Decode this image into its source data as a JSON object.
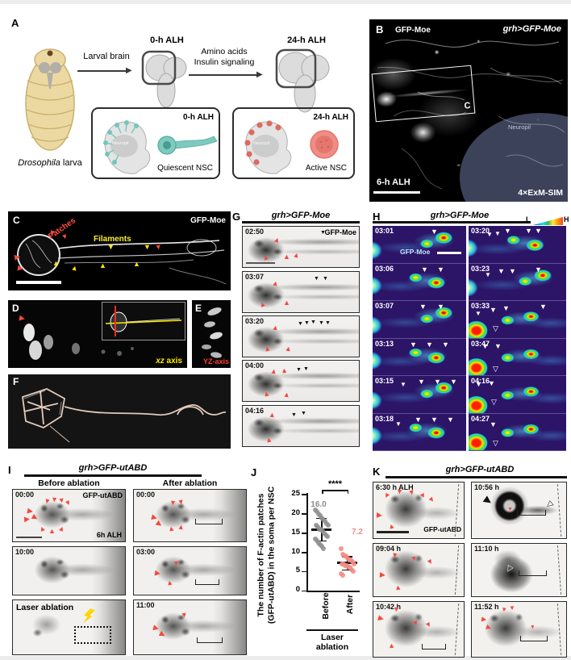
{
  "icons": {
    "tri_up": "▲",
    "tri_down": "▼",
    "tri_right": "▶",
    "tri_down_open": "▽",
    "tri_right_open": "▷"
  },
  "marker_colors": {
    "red": "#f4493d",
    "yellow": "#ffe600",
    "white": "#ffffff",
    "black": "#111111"
  },
  "panelA": {
    "label": "A",
    "larva_species": "Drosophila",
    "larva_word": " larva",
    "larval_brain": "Larval brain",
    "alh0": "0-h ALH",
    "amino": "Amino acids",
    "insulin": "Insulin signaling",
    "alh24": "24-h ALH",
    "q_time": "0-h ALH",
    "q_neuropil": "Neuropil",
    "q_caption": "Quiescent NSC",
    "a_time": "24-h ALH",
    "a_neuropil": "Neuropil",
    "a_caption": "Active NSC"
  },
  "panelB": {
    "label": "B",
    "marker": "GFP-Moe",
    "genotype": "grh>GFP-Moe",
    "inset": "C",
    "neuropil": "Neuropil",
    "time": "6-h ALH",
    "method": "4×ExM-SIM"
  },
  "panelC": {
    "label": "C",
    "patches": "Patches",
    "filaments": "Filaments",
    "marker": "GFP-Moe"
  },
  "panelD": {
    "label": "D",
    "axis_italic": "xz",
    "axis_rest": " axis"
  },
  "panelE": {
    "label": "E",
    "axis": "YZ-axis"
  },
  "panelF": {
    "label": "F"
  },
  "panelG": {
    "label": "G",
    "genotype": "grh>GFP-Moe",
    "marker": "GFP-Moe",
    "times": [
      "02:50",
      "03:07",
      "03:20",
      "04:00",
      "04:16"
    ]
  },
  "panelH": {
    "label": "H",
    "genotype": "grh>GFP-Moe",
    "marker": "GFP-Moe",
    "low": "L",
    "high": "H",
    "left_times": [
      "03:01",
      "03:06",
      "03:07",
      "03:13",
      "03:15",
      "03:18"
    ],
    "right_times": [
      "03:20",
      "03:23",
      "03:33",
      "03:47",
      "04:16",
      "04:27"
    ]
  },
  "panelI": {
    "label": "I",
    "genotype": "grh>GFP-utABD",
    "before": "Before ablation",
    "after": "After ablation",
    "marker": "GFP-utABD",
    "age": "6h ALH",
    "laser": "Laser ablation",
    "left_times": [
      "00:00",
      "10:00"
    ],
    "right_times": [
      "00:00",
      "03:00",
      "11:00"
    ]
  },
  "panelJ": {
    "label": "J",
    "sig": "****",
    "before_mean": "16.0",
    "after_mean": "7.2",
    "ylabel1": "The number of F-actin patches",
    "ylabel2": "(GFP-utABD) in the soma per NSC",
    "group1": "Before",
    "group2": "After",
    "laser1": "Laser",
    "laser2": "ablation",
    "yticks": [
      "25",
      "20",
      "15",
      "10",
      "5",
      "0"
    ]
  },
  "panelK": {
    "label": "K",
    "genotype": "grh>GFP-utABD",
    "marker": "GFP-utABD",
    "left_times": [
      "6:30 h ALH",
      "09:04 h",
      "10:42 h"
    ],
    "right_times": [
      "10:56 h",
      "11:10 h",
      "11:52 h"
    ]
  },
  "chart_data": {
    "type": "scatter",
    "title": "",
    "ylabel": "The number of F-actin patches (GFP-utABD) in the soma per NSC",
    "ylim": [
      0,
      25
    ],
    "yticks": [
      0,
      5,
      10,
      15,
      20,
      25
    ],
    "x_group_label": "Laser ablation",
    "significance": "****",
    "legend_position": "none",
    "series": [
      {
        "name": "Before",
        "mean": 16.0,
        "sd": 3.0,
        "color": "#8f8f8f",
        "values": [
          21,
          20.5,
          20,
          19.5,
          19,
          18.5,
          18,
          17.5,
          17,
          17,
          16.5,
          16,
          16,
          15.5,
          15,
          14.5,
          14,
          13.5,
          13,
          12.5,
          12,
          11.5,
          11
        ]
      },
      {
        "name": "After",
        "mean": 7.2,
        "sd": 1.8,
        "color": "#f28b82",
        "values": [
          11,
          9.5,
          9,
          9,
          8.5,
          8,
          8,
          7.5,
          7,
          7,
          7,
          6.5,
          6.5,
          6,
          6,
          5.5,
          5,
          4.5,
          4
        ]
      }
    ]
  },
  "markers": {
    "C": [
      {
        "t": "tri_down",
        "c": "red",
        "x": 50,
        "y": 22,
        "r": 20
      },
      {
        "t": "tri_down",
        "c": "red",
        "x": 66,
        "y": 27,
        "r": -15
      },
      {
        "t": "tri_right",
        "c": "red",
        "x": 8,
        "y": 52,
        "r": -10
      },
      {
        "t": "tri_right",
        "c": "red",
        "x": 12,
        "y": 66,
        "r": 10
      },
      {
        "t": "tri_up",
        "c": "yellow",
        "x": 55,
        "y": 60
      },
      {
        "t": "tri_up",
        "c": "yellow",
        "x": 78,
        "y": 66,
        "r": 15
      },
      {
        "t": "tri_up",
        "c": "yellow",
        "x": 113,
        "y": 63
      },
      {
        "t": "tri_up",
        "c": "yellow",
        "x": 155,
        "y": 61
      },
      {
        "t": "tri_down",
        "c": "yellow",
        "x": 123,
        "y": 40
      },
      {
        "t": "tri_down",
        "c": "yellow",
        "x": 168,
        "y": 40
      },
      {
        "t": "tri_down",
        "c": "red",
        "x": 182,
        "y": 40,
        "r": -10
      }
    ],
    "D": [
      {
        "t": "tri_right",
        "c": "red",
        "x": 14,
        "y": 18,
        "r": 10
      }
    ],
    "G0": [
      {
        "t": "tri_up",
        "c": "red",
        "x": 38,
        "y": 12,
        "r": 20
      },
      {
        "t": "tri_up",
        "c": "red",
        "x": 24,
        "y": 34,
        "r": -20
      },
      {
        "t": "tri_up",
        "c": "red",
        "x": 50,
        "y": 33
      },
      {
        "t": "tri_up",
        "c": "red",
        "x": 62,
        "y": 31,
        "r": 15
      },
      {
        "t": "tri_down",
        "c": "black",
        "x": 96,
        "y": 4,
        "s": 7
      }
    ],
    "G1": [
      {
        "t": "tri_up",
        "c": "red",
        "x": 36,
        "y": 10,
        "r": 15
      },
      {
        "t": "tri_up",
        "c": "red",
        "x": 20,
        "y": 36,
        "r": -20
      },
      {
        "t": "tri_up",
        "c": "red",
        "x": 50,
        "y": 34
      },
      {
        "t": "tri_down",
        "c": "black",
        "x": 88,
        "y": 5,
        "s": 7
      },
      {
        "t": "tri_down",
        "c": "black",
        "x": 99,
        "y": 5,
        "s": 7
      }
    ],
    "G2": [
      {
        "t": "tri_up",
        "c": "red",
        "x": 36,
        "y": 10,
        "r": 10
      },
      {
        "t": "tri_down",
        "c": "black",
        "x": 68,
        "y": 6,
        "s": 7
      },
      {
        "t": "tri_down",
        "c": "black",
        "x": 76,
        "y": 5,
        "s": 7
      },
      {
        "t": "tri_down",
        "c": "black",
        "x": 84,
        "y": 4,
        "s": 7
      },
      {
        "t": "tri_down",
        "c": "black",
        "x": 94,
        "y": 5,
        "s": 7
      },
      {
        "t": "tri_down",
        "c": "black",
        "x": 102,
        "y": 5,
        "s": 7
      },
      {
        "t": "tri_up",
        "c": "red",
        "x": 26,
        "y": 36,
        "r": -15
      },
      {
        "t": "tri_up",
        "c": "red",
        "x": 52,
        "y": 36,
        "r": 10
      }
    ],
    "G3": [
      {
        "t": "tri_up",
        "c": "red",
        "x": 34,
        "y": 9,
        "r": 10
      },
      {
        "t": "tri_up",
        "c": "red",
        "x": 47,
        "y": 8,
        "r": -5
      },
      {
        "t": "tri_down",
        "c": "black",
        "x": 66,
        "y": 8,
        "s": 7
      },
      {
        "t": "tri_down",
        "c": "black",
        "x": 75,
        "y": 7,
        "s": 7
      },
      {
        "t": "tri_up",
        "c": "red",
        "x": 25,
        "y": 37,
        "r": -15
      },
      {
        "t": "tri_up",
        "c": "red",
        "x": 50,
        "y": 38,
        "r": 10
      }
    ],
    "G4": [
      {
        "t": "tri_up",
        "c": "red",
        "x": 32,
        "y": 7,
        "r": 5
      },
      {
        "t": "tri_down",
        "c": "black",
        "x": 60,
        "y": 8,
        "s": 7
      },
      {
        "t": "tri_down",
        "c": "black",
        "x": 72,
        "y": 6,
        "s": 7
      },
      {
        "t": "tri_up",
        "c": "red",
        "x": 28,
        "y": 38,
        "r": -10
      }
    ],
    "H_L0": [
      {
        "t": "tri_down",
        "c": "white",
        "x": 72,
        "y": 3
      }
    ],
    "H_L1": [
      {
        "t": "tri_down",
        "c": "white",
        "x": 60,
        "y": 3
      },
      {
        "t": "tri_down",
        "c": "white",
        "x": 80,
        "y": 3
      }
    ],
    "H_L2": [
      {
        "t": "tri_down",
        "c": "white",
        "x": 58,
        "y": 3
      },
      {
        "t": "tri_down",
        "c": "white",
        "x": 80,
        "y": 3
      }
    ],
    "H_L3": [
      {
        "t": "tri_down",
        "c": "white",
        "x": 46,
        "y": 3
      },
      {
        "t": "tri_down",
        "c": "white",
        "x": 66,
        "y": 3
      },
      {
        "t": "tri_down",
        "c": "white",
        "x": 86,
        "y": 3
      }
    ],
    "H_L4": [
      {
        "t": "tri_down",
        "c": "white",
        "x": 34,
        "y": 7,
        "s": 8
      },
      {
        "t": "tri_down",
        "c": "white",
        "x": 56,
        "y": 3
      },
      {
        "t": "tri_down",
        "c": "white",
        "x": 76,
        "y": 3
      },
      {
        "t": "tri_down",
        "c": "white",
        "x": 96,
        "y": 3
      }
    ],
    "H_L5": [
      {
        "t": "tri_down",
        "c": "white",
        "x": 28,
        "y": 9,
        "s": 8
      },
      {
        "t": "tri_down",
        "c": "white",
        "x": 52,
        "y": 3
      },
      {
        "t": "tri_down",
        "c": "white",
        "x": 72,
        "y": 3
      },
      {
        "t": "tri_down",
        "c": "white",
        "x": 92,
        "y": 3
      }
    ],
    "H_R0": [
      {
        "t": "tri_down",
        "c": "white",
        "x": 22,
        "y": 7,
        "s": 8
      },
      {
        "t": "tri_down",
        "c": "white",
        "x": 32,
        "y": 6,
        "s": 8
      },
      {
        "t": "tri_down",
        "c": "white",
        "x": 44,
        "y": 2
      },
      {
        "t": "tri_down",
        "c": "white",
        "x": 70,
        "y": 2
      },
      {
        "t": "tri_down",
        "c": "white",
        "x": 82,
        "y": 2
      }
    ],
    "H_R1": [
      {
        "t": "tri_down",
        "c": "white",
        "x": 20,
        "y": 10,
        "s": 8
      },
      {
        "t": "tri_down",
        "c": "white",
        "x": 36,
        "y": 5
      },
      {
        "t": "tri_down",
        "c": "white",
        "x": 50,
        "y": 5
      },
      {
        "t": "tri_down",
        "c": "white",
        "x": 82,
        "y": 3
      }
    ],
    "H_R2": [
      {
        "t": "tri_down",
        "c": "white",
        "x": 8,
        "y": 12,
        "s": 8
      },
      {
        "t": "tri_down",
        "c": "white",
        "x": 26,
        "y": 7
      },
      {
        "t": "tri_down",
        "c": "white",
        "x": 42,
        "y": 5
      },
      {
        "t": "tri_down",
        "c": "white",
        "x": 88,
        "y": 3
      },
      {
        "t": "tri_down_open",
        "c": "white",
        "x": 30,
        "y": 30
      }
    ],
    "H_R3": [
      {
        "t": "tri_down",
        "c": "white",
        "x": 16,
        "y": 5
      },
      {
        "t": "tri_down",
        "c": "white",
        "x": 32,
        "y": 5
      },
      {
        "t": "tri_down_open",
        "c": "white",
        "x": 30,
        "y": 33
      }
    ],
    "H_R4": [
      {
        "t": "tri_down",
        "c": "white",
        "x": 8,
        "y": 6
      },
      {
        "t": "tri_down",
        "c": "white",
        "x": 24,
        "y": 5
      },
      {
        "t": "tri_down_open",
        "c": "white",
        "x": 28,
        "y": 28
      }
    ],
    "H_R5": [
      {
        "t": "tri_down",
        "c": "white",
        "x": 26,
        "y": 9
      },
      {
        "t": "tri_down_open",
        "c": "white",
        "x": 30,
        "y": 32
      }
    ],
    "I_L0": [
      {
        "t": "tri_down",
        "c": "red",
        "x": 38,
        "y": 10,
        "r": 15
      },
      {
        "t": "tri_down",
        "c": "red",
        "x": 47,
        "y": 8,
        "r": 5
      },
      {
        "t": "tri_down",
        "c": "red",
        "x": 56,
        "y": 9,
        "r": -10
      },
      {
        "t": "tri_down",
        "c": "red",
        "x": 64,
        "y": 12,
        "r": -25
      },
      {
        "t": "tri_right",
        "c": "red",
        "x": 18,
        "y": 22,
        "r": 10
      },
      {
        "t": "tri_right",
        "c": "red",
        "x": 14,
        "y": 32,
        "r": -5
      },
      {
        "t": "tri_right",
        "c": "red",
        "x": 24,
        "y": 30,
        "r": 30
      },
      {
        "t": "tri_up",
        "c": "red",
        "x": 32,
        "y": 44,
        "r": -20
      },
      {
        "t": "tri_up",
        "c": "red",
        "x": 44,
        "y": 47
      },
      {
        "t": "tri_up",
        "c": "red",
        "x": 56,
        "y": 44,
        "r": 20
      }
    ],
    "I_R0": [
      {
        "t": "tri_down",
        "c": "red",
        "x": 44,
        "y": 12,
        "r": 5
      },
      {
        "t": "tri_down",
        "c": "red",
        "x": 54,
        "y": 11,
        "r": -10
      },
      {
        "t": "tri_right",
        "c": "red",
        "x": 22,
        "y": 30,
        "r": 15
      },
      {
        "t": "tri_right",
        "c": "red",
        "x": 28,
        "y": 38,
        "r": 35
      },
      {
        "t": "tri_up",
        "c": "red",
        "x": 42,
        "y": 44,
        "r": -10
      },
      {
        "t": "tri_up",
        "c": "red",
        "x": 54,
        "y": 42,
        "r": 10
      }
    ],
    "I_R1": [
      {
        "t": "tri_down",
        "c": "red",
        "x": 48,
        "y": 16,
        "r": -5
      },
      {
        "t": "tri_right",
        "c": "red",
        "x": 26,
        "y": 28,
        "r": 10
      },
      {
        "t": "tri_up",
        "c": "red",
        "x": 40,
        "y": 40,
        "r": -10
      }
    ],
    "I_R2": [
      {
        "t": "tri_down",
        "c": "red",
        "x": 58,
        "y": 14,
        "r": -10
      },
      {
        "t": "tri_right",
        "c": "red",
        "x": 24,
        "y": 30,
        "r": 15
      },
      {
        "t": "tri_right",
        "c": "red",
        "x": 32,
        "y": 38,
        "r": 30
      }
    ],
    "K_L0": [
      {
        "t": "tri_down",
        "c": "red",
        "x": 12,
        "y": 12,
        "r": 25
      },
      {
        "t": "tri_down",
        "c": "red",
        "x": 28,
        "y": 7,
        "r": 5
      },
      {
        "t": "tri_down",
        "c": "red",
        "x": 43,
        "y": 8,
        "r": -10
      },
      {
        "t": "tri_down",
        "c": "red",
        "x": 57,
        "y": 12,
        "r": -25
      },
      {
        "t": "tri_down",
        "c": "red",
        "x": 68,
        "y": 17,
        "r": -40
      },
      {
        "t": "tri_right",
        "c": "red",
        "x": 4,
        "y": 36,
        "r": 5
      },
      {
        "t": "tri_up",
        "c": "red",
        "x": 18,
        "y": 50,
        "r": -15
      }
    ],
    "K_L1": [
      {
        "t": "tri_down",
        "c": "red",
        "x": 22,
        "y": 10,
        "r": 10
      },
      {
        "t": "tri_down",
        "c": "red",
        "x": 46,
        "y": 14,
        "r": -15
      },
      {
        "t": "tri_down",
        "c": "red",
        "x": 66,
        "y": 18,
        "r": -30
      },
      {
        "t": "tri_right",
        "c": "red",
        "x": 8,
        "y": 34,
        "r": 5
      },
      {
        "t": "tri_up",
        "c": "red",
        "x": 26,
        "y": 50,
        "r": -10
      }
    ],
    "K_L2": [
      {
        "t": "tri_down",
        "c": "red",
        "x": 24,
        "y": 5,
        "r": 5
      },
      {
        "t": "tri_right",
        "c": "red",
        "x": 6,
        "y": 16,
        "r": 15
      },
      {
        "t": "tri_down",
        "c": "red",
        "x": 48,
        "y": 22,
        "r": -20
      },
      {
        "t": "tri_down",
        "c": "red",
        "x": 64,
        "y": 24,
        "r": -30
      },
      {
        "t": "tri_up",
        "c": "red",
        "x": 18,
        "y": 50,
        "r": -5
      }
    ],
    "K_R0": [
      {
        "t": "tri_right",
        "c": "black",
        "x": 16,
        "y": 16,
        "r": 35,
        "s": 12
      },
      {
        "t": "tri_down",
        "c": "red",
        "x": 44,
        "y": 30,
        "s": 7
      },
      {
        "t": "tri_right_open",
        "c": "black",
        "x": 92,
        "y": 22,
        "r": 140,
        "s": 10
      }
    ],
    "K_R1": [
      {
        "t": "tri_right_open",
        "c": "white",
        "x": 42,
        "y": 26,
        "r": 120,
        "s": 10
      }
    ],
    "K_R2": [
      {
        "t": "tri_down",
        "c": "red",
        "x": 36,
        "y": 6,
        "r": 10,
        "s": 8
      },
      {
        "t": "tri_down",
        "c": "red",
        "x": 46,
        "y": 4,
        "r": -5,
        "s": 8
      },
      {
        "t": "tri_right",
        "c": "red",
        "x": 12,
        "y": 18,
        "r": 10,
        "s": 8
      },
      {
        "t": "tri_right",
        "c": "red",
        "x": 18,
        "y": 28,
        "r": 20,
        "s": 8
      },
      {
        "t": "tri_down",
        "c": "red",
        "x": 72,
        "y": 28,
        "r": -10,
        "s": 7
      }
    ]
  }
}
